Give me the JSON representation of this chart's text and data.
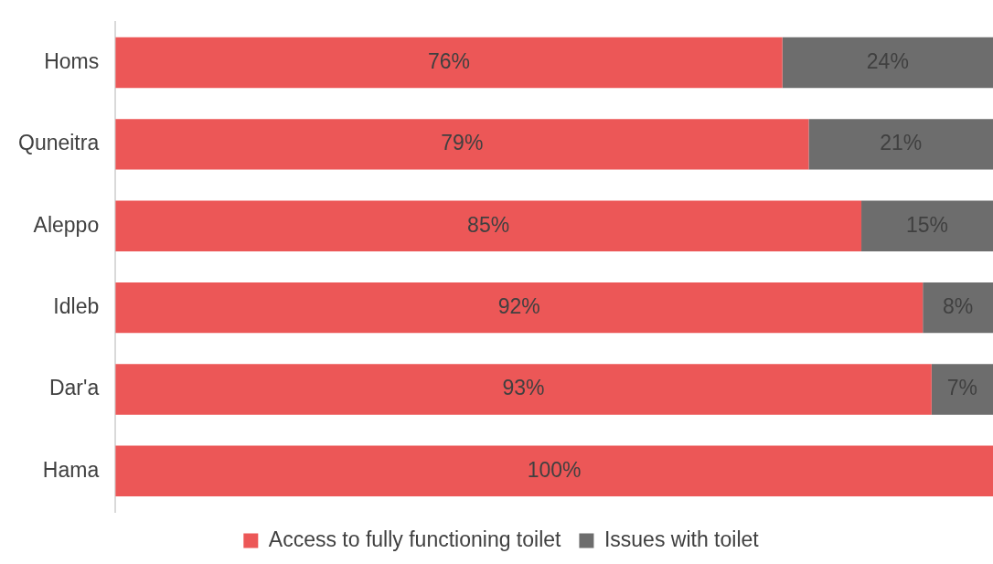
{
  "chart_data": {
    "type": "bar",
    "orientation": "horizontal",
    "stacked": true,
    "categories": [
      "Homs",
      "Quneitra",
      "Aleppo",
      "Idleb",
      "Dar'a",
      "Hama"
    ],
    "series": [
      {
        "name": "Access to fully functioning toilet",
        "color": "#ec5757",
        "values": [
          76,
          79,
          85,
          92,
          93,
          100
        ],
        "value_labels": [
          "76%",
          "79%",
          "85%",
          "92%",
          "93%",
          "100%"
        ]
      },
      {
        "name": "Issues with toilet",
        "color": "#6d6d6d",
        "values": [
          24,
          21,
          15,
          8,
          7,
          0
        ],
        "value_labels": [
          "24%",
          "21%",
          "15%",
          "8%",
          "7%",
          null
        ]
      }
    ],
    "xlim": [
      0,
      100
    ],
    "tick_labels": "y",
    "legend": "bottom"
  }
}
